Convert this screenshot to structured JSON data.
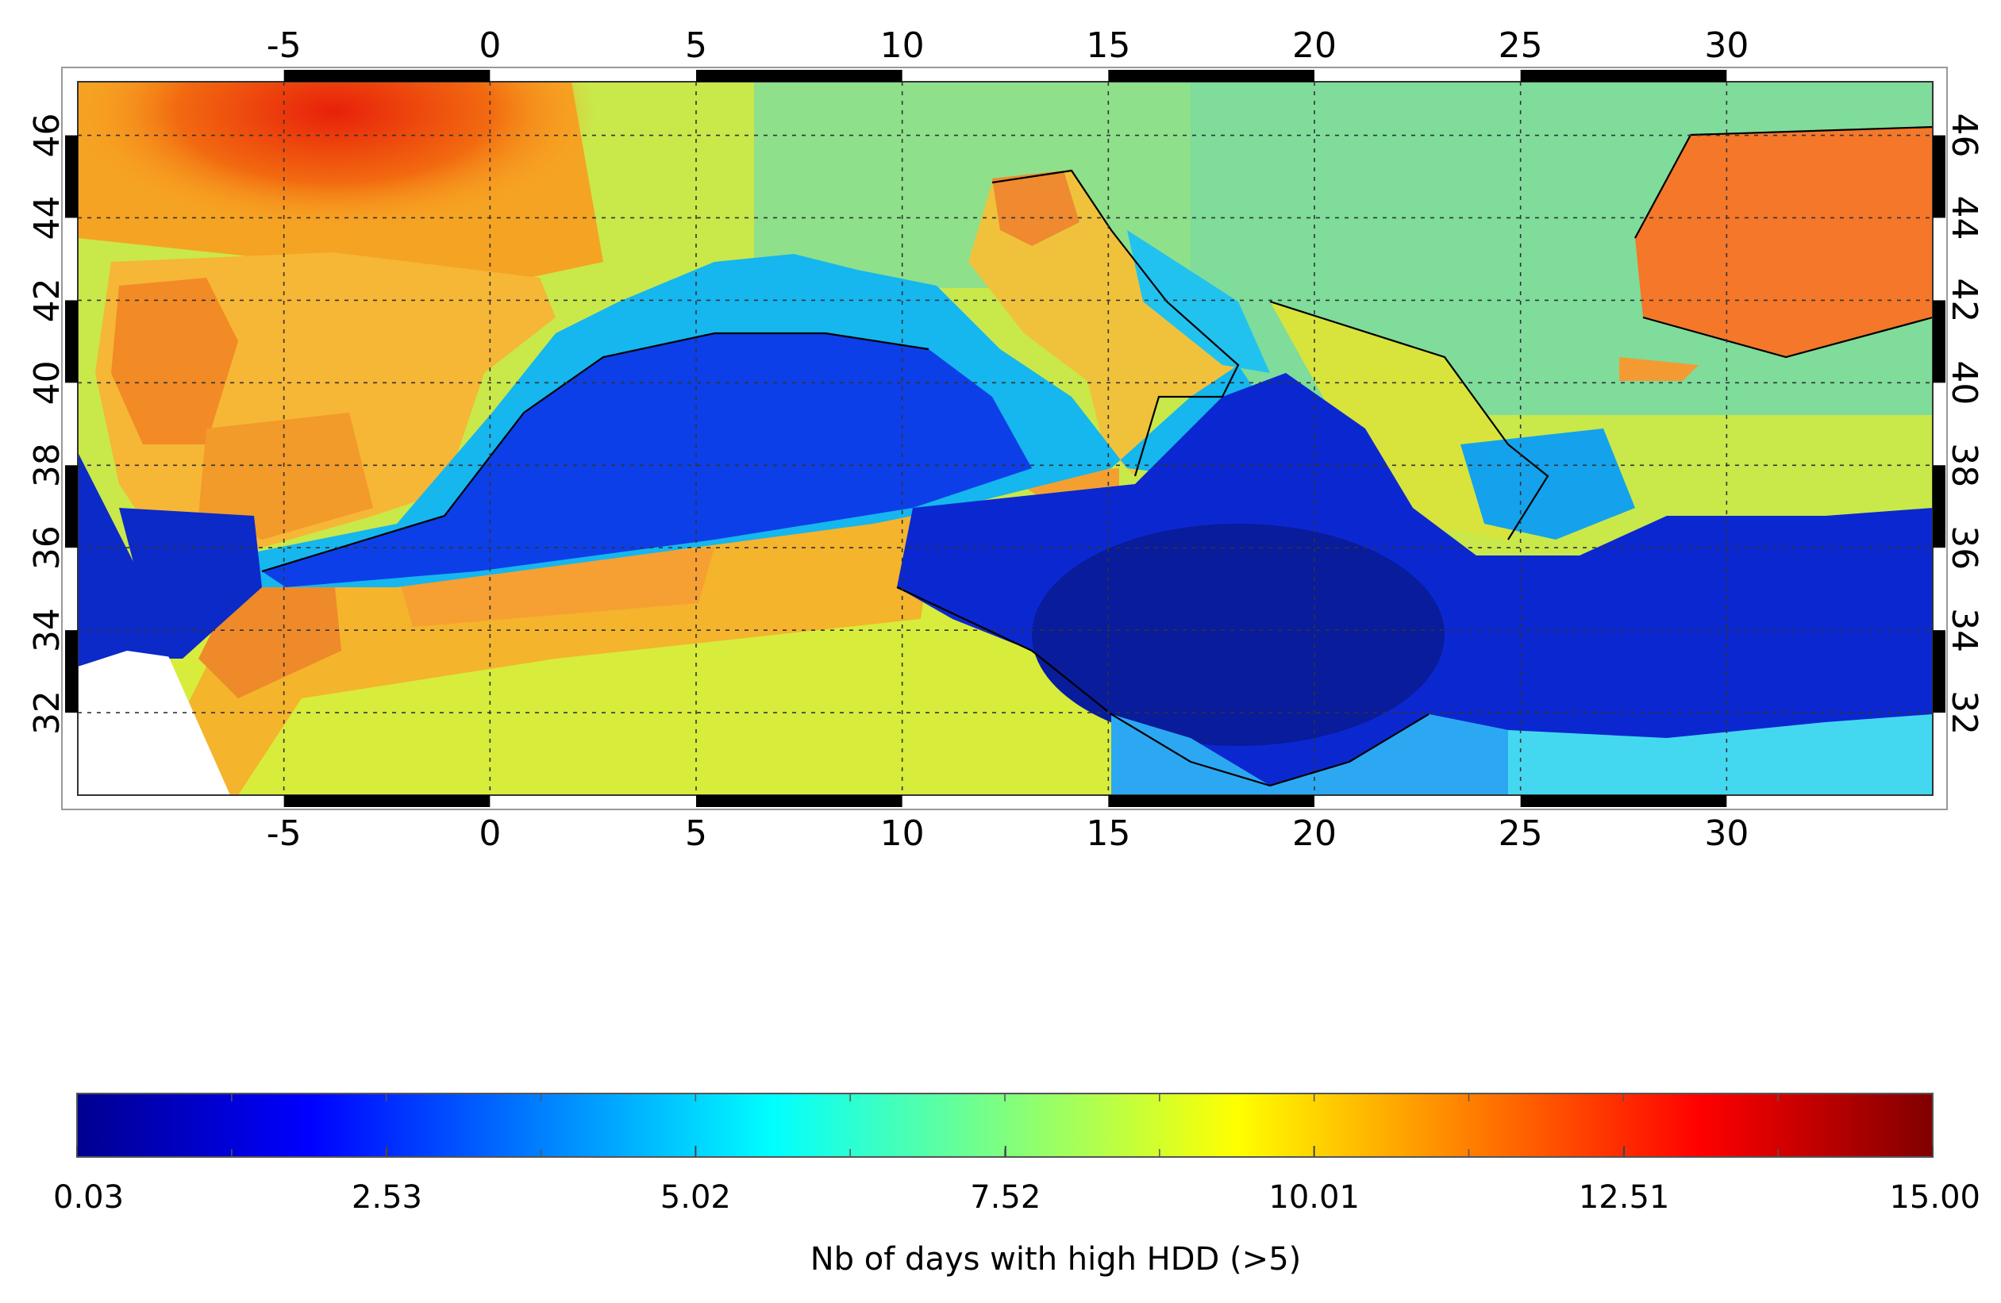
{
  "map": {
    "lon_range": [
      -10,
      35
    ],
    "lat_range": [
      30,
      47.3
    ],
    "lon_ticks": [
      "-5",
      "0",
      "5",
      "10",
      "15",
      "20",
      "25",
      "30"
    ],
    "lat_ticks": [
      "32",
      "34",
      "36",
      "38",
      "40",
      "42",
      "44",
      "46"
    ],
    "grid": true,
    "grid_style": "dotted",
    "region": "Mediterranean basin",
    "no_data_color": "#ffffff"
  },
  "colorbar": {
    "label": "Nb of days with high HDD (>5)",
    "ticks": [
      "0.03",
      "2.53",
      "5.02",
      "7.52",
      "10.01",
      "12.51",
      "15.00"
    ],
    "min": 0.03,
    "max": 15.0,
    "colormap": "jet",
    "colors": [
      "#00008f",
      "#0000ff",
      "#00ffff",
      "#7fff7f",
      "#ffff00",
      "#ff0000",
      "#800000"
    ]
  }
}
